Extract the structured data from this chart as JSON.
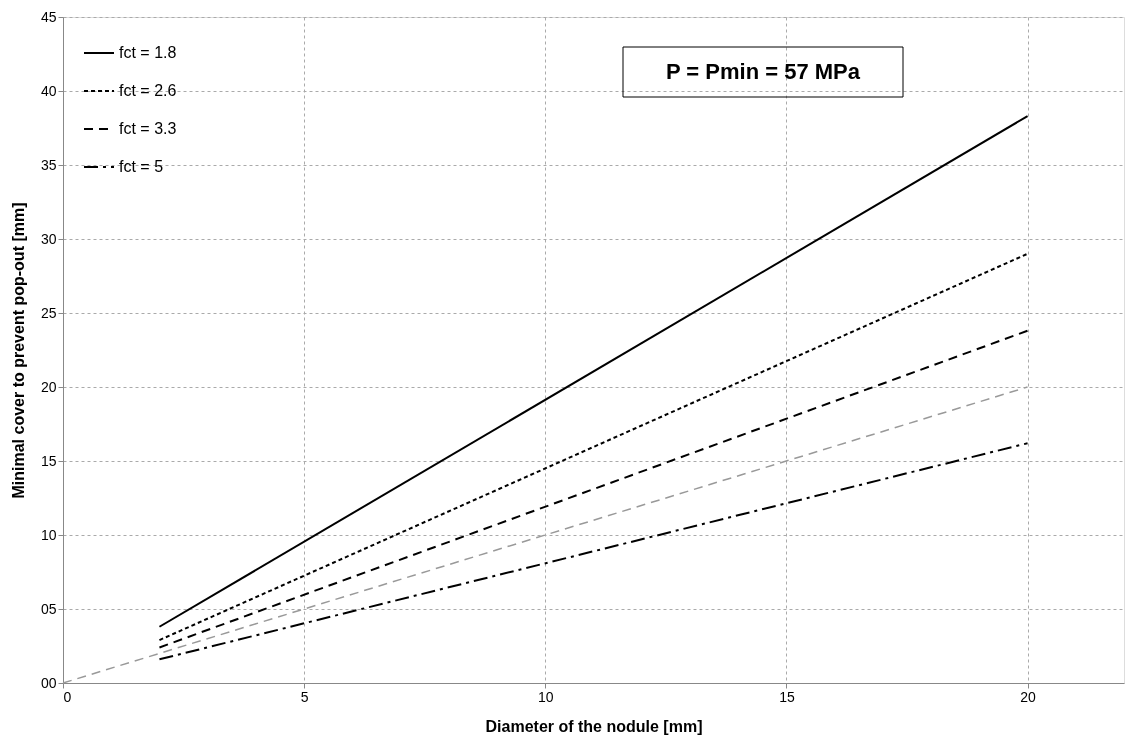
{
  "chart_data": {
    "type": "line",
    "xlabel": "Diameter of the nodule [mm]",
    "ylabel": "Minimal cover to prevent pop-out [mm]",
    "x": [
      2,
      20
    ],
    "series": [
      {
        "name": "fct = 1.8",
        "color": "#000000",
        "line_style": "solid",
        "values": [
          3.8,
          38.3
        ]
      },
      {
        "name": "fct = 2.6",
        "color": "#000000",
        "line_style": "dotted",
        "values": [
          2.9,
          29
        ]
      },
      {
        "name": "fct = 3.3",
        "color": "#000000",
        "line_style": "dashed",
        "values": [
          2.4,
          23.8
        ]
      },
      {
        "name": "fct = 5",
        "color": "#000000",
        "line_style": "dashdot",
        "values": [
          1.6,
          16.2
        ]
      },
      {
        "color": "#999999",
        "line_style": "dashed",
        "x": [
          0,
          20
        ],
        "values": [
          0,
          20
        ]
      }
    ],
    "xlim": [
      0,
      22
    ],
    "xticks": [
      0,
      5,
      10,
      15,
      20
    ],
    "ylim": [
      0,
      45
    ],
    "yticks": [
      {
        "value": 0,
        "label": "00"
      },
      {
        "value": 5,
        "label": "05"
      },
      10,
      15,
      20,
      25,
      30,
      35,
      40,
      45
    ],
    "grid": true,
    "legend": "top left",
    "marker": "none",
    "annotations": [
      "P = Pmin = 57 MPa"
    ]
  }
}
